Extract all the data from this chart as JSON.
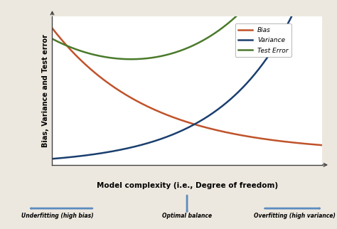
{
  "title": "",
  "xlabel": "Model complexity (i.e., Degree of freedom)",
  "ylabel": "Bias, Variance and Test error",
  "bias_color": "#c0522a",
  "variance_color": "#1a3f6f",
  "test_error_color": "#4a7a2a",
  "legend_labels": [
    "Bias",
    "Variance",
    "Test Error"
  ],
  "bg_color": "#ede8df",
  "plot_bg": "#ffffff",
  "bottom_labels": [
    "Underfitting (high bias)",
    "Optimal balance",
    "Overfitting (high variance)"
  ],
  "arrow_color": "#5b8bbf",
  "border_color": "#b0a898"
}
